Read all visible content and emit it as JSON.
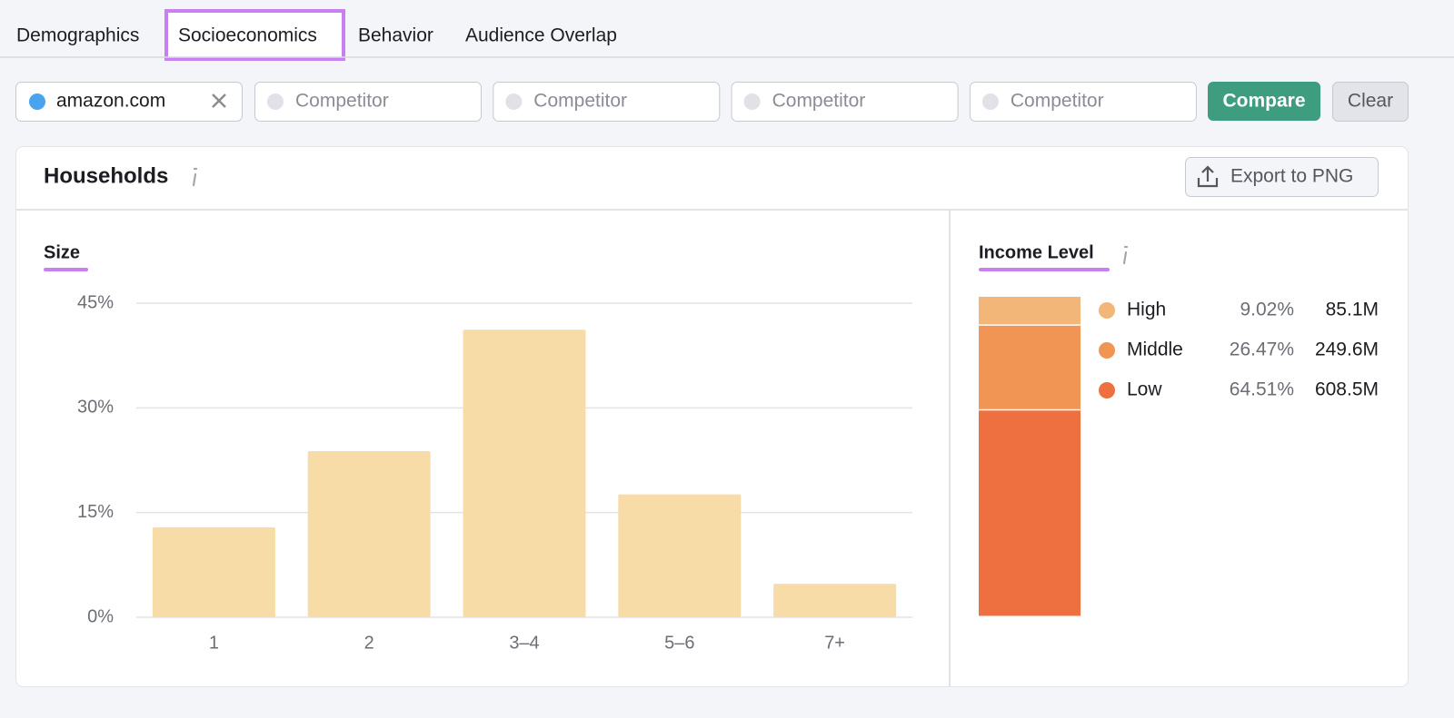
{
  "tabs": [
    "Demographics",
    "Socioeconomics",
    "Behavior",
    "Audience Overlap"
  ],
  "domain_input": "amazon.com",
  "competitor_inputs": [
    "Competitor",
    "Competitor",
    "Competitor",
    "Competitor"
  ],
  "buttons": {
    "compare": "Compare",
    "clear": "Clear",
    "export": "Export to PNG"
  },
  "card_title": "Households",
  "chart_data": [
    {
      "type": "bar",
      "title": "Size",
      "categories": [
        "1",
        "2",
        "3–4",
        "5–6",
        "7+"
      ],
      "values": [
        12.9,
        23.8,
        41.2,
        17.6,
        4.8
      ],
      "color": "#f7dca7",
      "ylim": [
        0,
        45
      ],
      "yticks": [
        {
          "value": 0,
          "label": "0%"
        },
        {
          "value": 15,
          "label": "15%"
        },
        {
          "value": 30,
          "label": "30%"
        },
        {
          "value": 45,
          "label": "45%"
        }
      ],
      "grid": true
    },
    {
      "type": "stacked_bar",
      "title": "Income Level",
      "categories": [
        "High",
        "Middle",
        "Low"
      ],
      "values": [
        9.02,
        26.47,
        64.51
      ],
      "value_labels": [
        "9.02%",
        "26.47%",
        "64.51%"
      ],
      "counts": [
        85100000,
        249600000,
        608500000
      ],
      "count_labels": [
        "85.1M",
        "249.6M",
        "608.5M"
      ],
      "colors": [
        "#f2b679",
        "#f09554",
        "#ee7040"
      ]
    }
  ]
}
